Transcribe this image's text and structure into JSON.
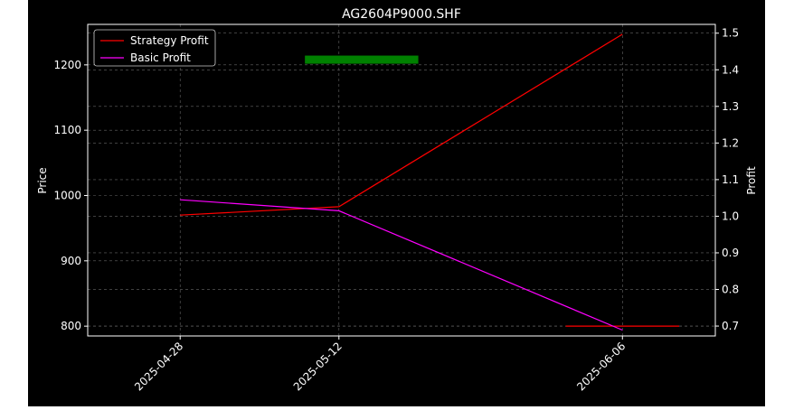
{
  "chart_data": {
    "type": "line",
    "title": "AG2604P9000.SHF",
    "xlabel": "",
    "ylabel": "Price",
    "y2label": "Profit",
    "x": [
      "2025-04-28",
      "2025-05-12",
      "2025-06-06"
    ],
    "xticks": [
      "2025-04-28",
      "2025-05-12",
      "2025-06-06"
    ],
    "ylim": [
      785,
      1262
    ],
    "yticks": [
      800,
      900,
      1000,
      1100,
      1200
    ],
    "y2lim": [
      0.673,
      1.524
    ],
    "y2ticks": [
      0.7,
      0.8,
      0.9,
      1.0,
      1.1,
      1.2,
      1.3,
      1.4,
      1.5
    ],
    "grid": true,
    "legend": "top-left",
    "series": [
      {
        "name": "Strategy Profit",
        "axis": "right",
        "color": "#ff0000",
        "values": [
          1.003,
          1.026,
          1.497
        ]
      },
      {
        "name": "Basic Profit",
        "axis": "right",
        "color": "#ff00ff",
        "values": [
          1.045,
          1.015,
          0.689
        ]
      }
    ],
    "markers": [
      {
        "color": "#008000",
        "x_from": "2025-05-09",
        "x_to": "2025-05-19",
        "y": 1208
      },
      {
        "color": "#ff0000",
        "x_from": "2025-06-01",
        "x_to": "2025-06-11",
        "y": 800
      }
    ]
  }
}
